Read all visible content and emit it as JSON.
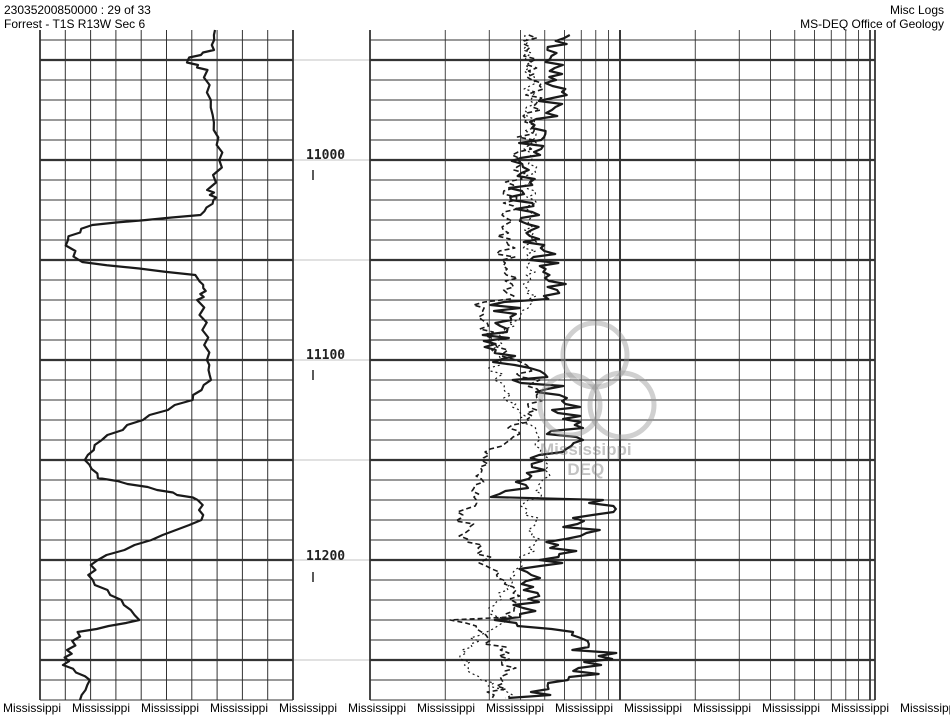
{
  "header": {
    "well_id": "23035200850000 : 29 of 33",
    "location": "Forrest - T1S R13W Sec 6",
    "category": "Misc Logs",
    "source": "MS-DEQ Office of Geology"
  },
  "depth_labels": [
    "11000",
    "11100",
    "11200"
  ],
  "watermark": {
    "line1": "Mississippi",
    "line2": "DEQ"
  },
  "footer": {
    "label": "Mississippi",
    "count": 14
  },
  "colors": {
    "ink": "#1a1a1a",
    "grid": "#333333",
    "background": "#ffffff"
  }
}
